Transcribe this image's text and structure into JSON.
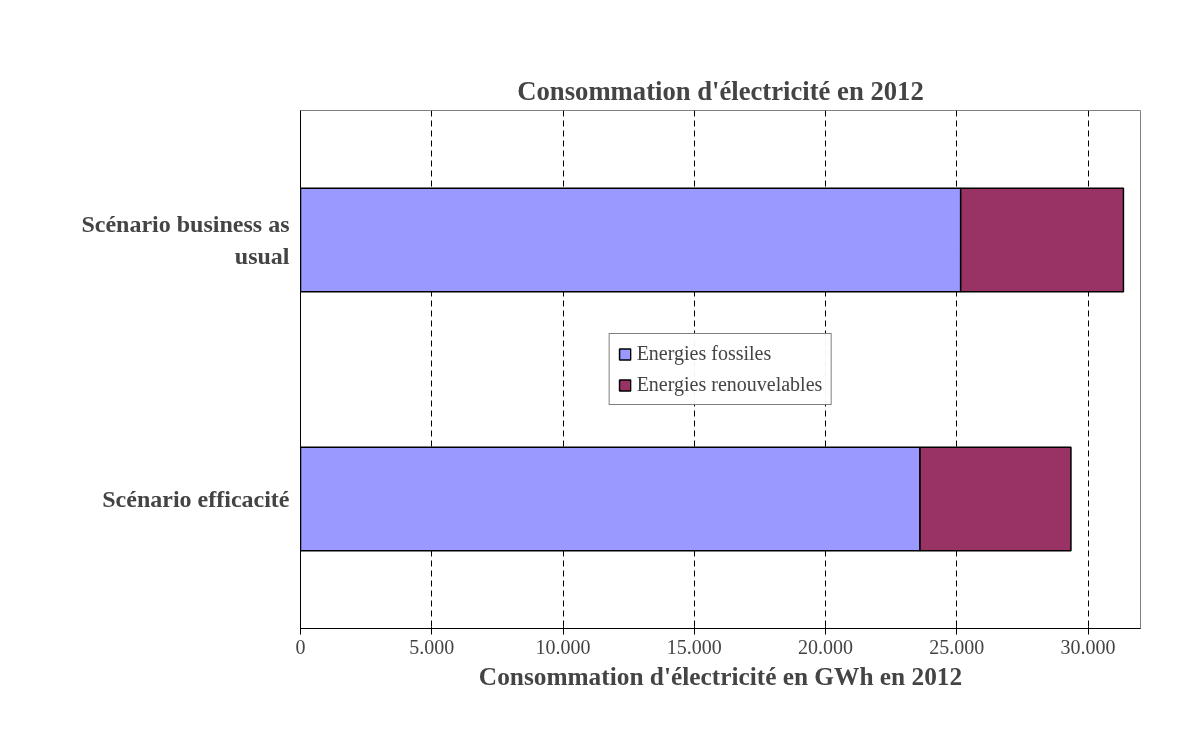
{
  "chart_data": {
    "type": "bar",
    "orientation": "horizontal",
    "stacked": true,
    "title": "Consommation d'électricité en 2012",
    "xlabel": "Consommation d'électricité en GWh en 2012",
    "categories": [
      "Scénario business as usual",
      "Scénario efficacité"
    ],
    "series": [
      {
        "name": "Energies fossiles",
        "color": "#9999ff",
        "values": [
          25150,
          23600
        ]
      },
      {
        "name": "Energies renouvelables",
        "color": "#993366",
        "values": [
          6200,
          5750
        ]
      }
    ],
    "xlim": [
      0,
      32000
    ],
    "xticks": [
      0,
      {
        "value": 5000,
        "label": "5.000"
      },
      {
        "value": 10000,
        "label": "10.000"
      },
      {
        "value": 15000,
        "label": "15.000"
      },
      {
        "value": 20000,
        "label": "20.000"
      },
      {
        "value": 25000,
        "label": "25.000"
      },
      {
        "value": 30000,
        "label": "30.000"
      }
    ],
    "grid": "x",
    "legend": "center"
  }
}
